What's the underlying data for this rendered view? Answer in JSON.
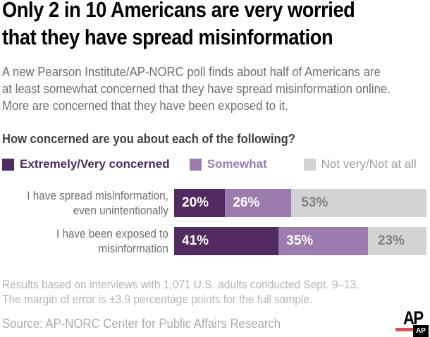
{
  "title": "Only 2 in 10 Americans are very worried\nthat they have spread misinformation",
  "subtitle": "A new Pearson Institute/AP-NORC poll finds about half of Americans are\nat least somewhat concerned that they have spread misinformation online.\nMore are concerned that they have been exposed to it.",
  "question": "How concerned are you about each of the following?",
  "legend": [
    {
      "label": "Extremely/Very concerned",
      "color": "#512b5f",
      "text_color": "#512b5f"
    },
    {
      "label": "Somewhat",
      "color": "#9c7bae",
      "text_color": "#9c7bae"
    },
    {
      "label": "Not very/Not at all",
      "color": "#d2d3d5",
      "text_color": "#9da0a3"
    }
  ],
  "chart_data": {
    "type": "bar",
    "orientation": "horizontal-stacked",
    "unit": "percent",
    "categories": [
      "I have spread misinformation,\neven unintentionally",
      "I have been exposed to\nmisinformation"
    ],
    "series": [
      {
        "name": "Extremely/Very concerned",
        "values": [
          20,
          41
        ],
        "labels": [
          "20%",
          "41%"
        ],
        "color": "#512b5f",
        "label_color": "#ffffff"
      },
      {
        "name": "Somewhat",
        "values": [
          26,
          35
        ],
        "labels": [
          "26%",
          "35%"
        ],
        "color": "#9c7bae",
        "label_color": "#ffffff"
      },
      {
        "name": "Not very/Not at all",
        "values": [
          53,
          23
        ],
        "labels": [
          "53%",
          "23%"
        ],
        "color": "#d2d3d5",
        "label_color": "#808285"
      }
    ]
  },
  "footnote": "Results based on interviews with 1,071 U.S. adults conducted Sept. 9–13.\nThe margin of error is ±3.9 percentage points for the full sample.",
  "source": "Source: AP-NORC Center for Public Affairs Research",
  "logo": {
    "wordmark": "AP",
    "mark": "AP",
    "red": "#d9535a"
  }
}
